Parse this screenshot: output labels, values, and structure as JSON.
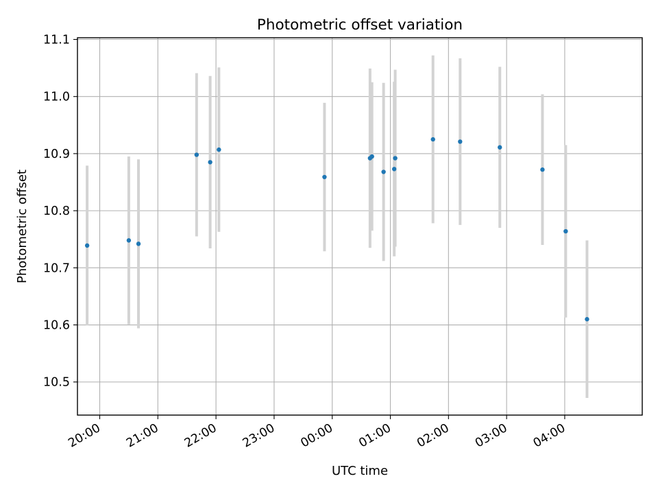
{
  "chart_data": {
    "type": "scatter",
    "title": "Photometric offset variation",
    "xlabel": "UTC time",
    "ylabel": "Photometric offset",
    "x_axis_type": "time",
    "x_tick_labels": [
      "20:00",
      "21:00",
      "22:00",
      "23:00",
      "00:00",
      "01:00",
      "02:00",
      "03:00",
      "04:00"
    ],
    "y_ticks": [
      "10.5",
      "10.6",
      "10.7",
      "10.8",
      "10.9",
      "11.0",
      "11.1"
    ],
    "xlim": [
      "19:37",
      "05:20"
    ],
    "ylim": [
      10.442,
      11.103
    ],
    "grid": true,
    "marker_color": "#1f77b4",
    "errorbar_color": "#d3d3d3",
    "series": [
      {
        "points": [
          {
            "x": "19:47",
            "y": 10.739,
            "yerr": 0.14
          },
          {
            "x": "20:30",
            "y": 10.748,
            "yerr": 0.147
          },
          {
            "x": "20:40",
            "y": 10.742,
            "yerr": 0.148
          },
          {
            "x": "21:40",
            "y": 10.898,
            "yerr": 0.143
          },
          {
            "x": "21:54",
            "y": 10.885,
            "yerr": 0.151
          },
          {
            "x": "22:03",
            "y": 10.907,
            "yerr": 0.144
          },
          {
            "x": "23:52",
            "y": 10.859,
            "yerr": 0.13
          },
          {
            "x": "00:39",
            "y": 10.892,
            "yerr": 0.157
          },
          {
            "x": "00:41",
            "y": 10.895,
            "yerr": 0.13
          },
          {
            "x": "00:53",
            "y": 10.868,
            "yerr": 0.156
          },
          {
            "x": "01:04",
            "y": 10.873,
            "yerr": 0.153
          },
          {
            "x": "01:05",
            "y": 10.892,
            "yerr": 0.155
          },
          {
            "x": "01:44",
            "y": 10.925,
            "yerr": 0.147
          },
          {
            "x": "02:12",
            "y": 10.921,
            "yerr": 0.146
          },
          {
            "x": "02:53",
            "y": 10.911,
            "yerr": 0.141
          },
          {
            "x": "03:37",
            "y": 10.872,
            "yerr": 0.132
          },
          {
            "x": "04:01",
            "y": 10.764,
            "yerr": 0.151
          },
          {
            "x": "04:23",
            "y": 10.61,
            "yerr": 0.138
          }
        ]
      }
    ]
  }
}
